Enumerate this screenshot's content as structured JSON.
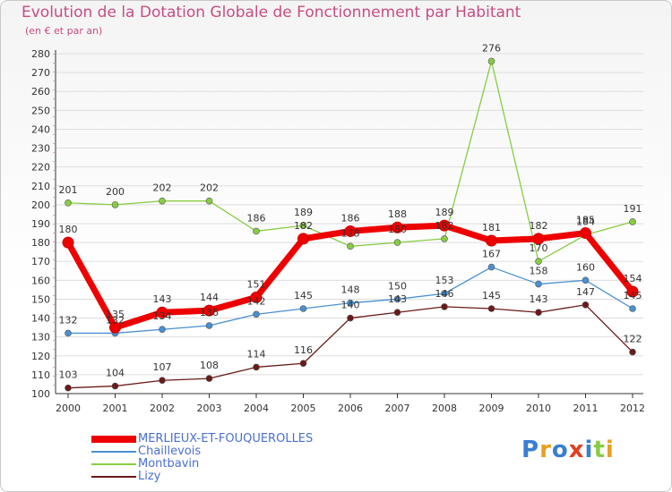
{
  "chart_data": {
    "type": "line",
    "title": "Evolution de la Dotation Globale de Fonctionnement par Habitant",
    "subtitle": "(en € et par an)",
    "categories": [
      "2000",
      "2001",
      "2002",
      "2003",
      "2004",
      "2005",
      "2006",
      "2007",
      "2008",
      "2009",
      "2010",
      "2011",
      "2012"
    ],
    "ylim": [
      100,
      280
    ],
    "yticks": [
      100,
      110,
      120,
      130,
      140,
      150,
      160,
      170,
      180,
      190,
      200,
      210,
      220,
      230,
      240,
      250,
      260,
      270,
      280
    ],
    "series": [
      {
        "name": "MERLIEUX-ET-FOUQUEROLLES",
        "color": "#ee0000",
        "values": [
          180,
          135,
          143,
          144,
          151,
          182,
          186,
          188,
          189,
          181,
          182,
          185,
          154
        ]
      },
      {
        "name": "Chaillevois",
        "color": "#4a8fd0",
        "values": [
          132,
          132,
          134,
          136,
          142,
          145,
          148,
          150,
          153,
          167,
          158,
          160,
          145
        ]
      },
      {
        "name": "Montbavin",
        "color": "#88cc44",
        "values": [
          201,
          200,
          202,
          202,
          186,
          189,
          178,
          180,
          182,
          276,
          170,
          184,
          191
        ]
      },
      {
        "name": "Lizy",
        "color": "#6a1a1a",
        "values": [
          103,
          104,
          107,
          108,
          114,
          116,
          140,
          143,
          146,
          145,
          143,
          147,
          122
        ]
      }
    ]
  },
  "logo": {
    "text": "Proxiti"
  }
}
